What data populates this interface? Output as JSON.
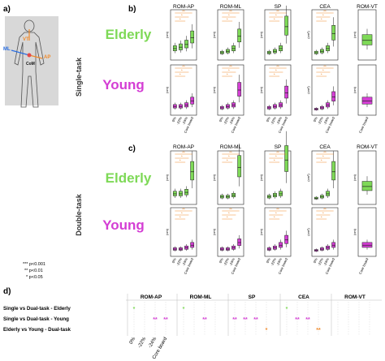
{
  "panel_labels": {
    "a": "a)",
    "b": "b)",
    "c": "c)",
    "d": "d)"
  },
  "body_labels": {
    "vt": "VT",
    "ap": "AP",
    "ml": "ML",
    "com": "CoM"
  },
  "significance_legend": [
    "*** p<0.001",
    "** p<0.01",
    "* p<0.05"
  ],
  "task_labels": {
    "single": "Single-task",
    "double": "Double-task"
  },
  "group_labels": {
    "elderly": "Elderly",
    "young": "Young"
  },
  "colors": {
    "elderly": "#7ed957",
    "young": "#d43ed4",
    "annotation": "#f08a2b",
    "lines": "#e34949"
  },
  "chart_data": {
    "type": "box",
    "conditions": [
      "0%",
      "-22%",
      "-24%",
      "Core board"
    ],
    "measures": [
      {
        "name": "ROM-AP",
        "unit": "(cm)"
      },
      {
        "name": "ROM-ML",
        "unit": "(cm)"
      },
      {
        "name": "SP",
        "unit": "(cm)"
      },
      {
        "name": "CEA",
        "unit": "(cm²)"
      },
      {
        "name": "ROM-VT",
        "unit": "(cm)"
      }
    ],
    "panels": [
      {
        "task": "Single-task",
        "group": "Elderly",
        "measure": "ROM-AP",
        "medians": [
          0.6,
          0.7,
          0.9,
          1.4
        ]
      },
      {
        "task": "Single-task",
        "group": "Elderly",
        "measure": "ROM-ML",
        "medians": [
          0.3,
          0.4,
          0.6,
          1.5
        ]
      },
      {
        "task": "Single-task",
        "group": "Elderly",
        "measure": "SP",
        "medians": [
          0.3,
          0.4,
          0.6,
          2.2
        ]
      },
      {
        "task": "Single-task",
        "group": "Elderly",
        "measure": "CEA",
        "medians": [
          0.3,
          0.4,
          0.6,
          1.7
        ]
      },
      {
        "task": "Single-task",
        "group": "Elderly",
        "measure": "ROM-VT",
        "medians": [
          1.2
        ]
      },
      {
        "task": "Single-task",
        "group": "Young",
        "measure": "ROM-AP",
        "medians": [
          0.4,
          0.4,
          0.5,
          0.8
        ]
      },
      {
        "task": "Single-task",
        "group": "Young",
        "measure": "ROM-ML",
        "medians": [
          0.3,
          0.4,
          0.5,
          1.6
        ]
      },
      {
        "task": "Single-task",
        "group": "Young",
        "measure": "SP",
        "medians": [
          0.3,
          0.4,
          0.5,
          1.4
        ]
      },
      {
        "task": "Single-task",
        "group": "Young",
        "measure": "CEA",
        "medians": [
          0.2,
          0.3,
          0.5,
          1.1
        ]
      },
      {
        "task": "Single-task",
        "group": "Young",
        "measure": "ROM-VT",
        "medians": [
          0.8
        ]
      },
      {
        "task": "Double-task",
        "group": "Elderly",
        "measure": "ROM-AP",
        "medians": [
          0.5,
          0.5,
          0.6,
          2.0
        ]
      },
      {
        "task": "Double-task",
        "group": "Elderly",
        "measure": "ROM-ML",
        "medians": [
          0.3,
          0.3,
          0.4,
          2.3
        ]
      },
      {
        "task": "Double-task",
        "group": "Elderly",
        "measure": "SP",
        "medians": [
          0.3,
          0.4,
          0.5,
          2.8
        ]
      },
      {
        "task": "Double-task",
        "group": "Elderly",
        "measure": "CEA",
        "medians": [
          0.2,
          0.3,
          0.5,
          2.0
        ]
      },
      {
        "task": "Double-task",
        "group": "Elderly",
        "measure": "ROM-VT",
        "medians": [
          1.0
        ]
      },
      {
        "task": "Double-task",
        "group": "Young",
        "measure": "ROM-AP",
        "medians": [
          0.3,
          0.3,
          0.4,
          0.6
        ]
      },
      {
        "task": "Double-task",
        "group": "Young",
        "measure": "ROM-ML",
        "medians": [
          0.3,
          0.3,
          0.4,
          0.8
        ]
      },
      {
        "task": "Double-task",
        "group": "Young",
        "measure": "SP",
        "medians": [
          0.3,
          0.4,
          0.6,
          1.0
        ]
      },
      {
        "task": "Double-task",
        "group": "Young",
        "measure": "CEA",
        "medians": [
          0.2,
          0.3,
          0.4,
          0.6
        ]
      },
      {
        "task": "Double-task",
        "group": "Young",
        "measure": "ROM-VT",
        "medians": [
          0.6
        ]
      }
    ],
    "comparisons": {
      "rows": [
        "Single vs Dual-task - Elderly",
        "Single vs Dual-task - Young",
        "Elderly vs Young - Dual-task"
      ],
      "measures": [
        "ROM-AP",
        "ROM-ML",
        "SP",
        "CEA",
        "ROM-VT"
      ],
      "conditions": [
        "0%",
        "-22%",
        "-24%",
        "Core board"
      ],
      "marks": [
        {
          "measure": "ROM-AP",
          "row": 0,
          "condition": "0%",
          "label": "*"
        },
        {
          "measure": "ROM-AP",
          "row": 1,
          "condition": "-24%",
          "label": "**"
        },
        {
          "measure": "ROM-AP",
          "row": 1,
          "condition": "Core board",
          "label": "**"
        },
        {
          "measure": "ROM-ML",
          "row": 0,
          "condition": "0%",
          "label": "*"
        },
        {
          "measure": "ROM-ML",
          "row": 1,
          "condition": "-24%",
          "label": "**"
        },
        {
          "measure": "SP",
          "row": 1,
          "condition": "0%",
          "label": "**"
        },
        {
          "measure": "SP",
          "row": 1,
          "condition": "-22%",
          "label": "**"
        },
        {
          "measure": "SP",
          "row": 1,
          "condition": "-24%",
          "label": "**"
        },
        {
          "measure": "SP",
          "row": 2,
          "condition": "Core board",
          "label": "*"
        },
        {
          "measure": "CEA",
          "row": 0,
          "condition": "0%",
          "label": "*"
        },
        {
          "measure": "CEA",
          "row": 1,
          "condition": "-22%",
          "label": "**"
        },
        {
          "measure": "CEA",
          "row": 1,
          "condition": "-24%",
          "label": "**"
        },
        {
          "measure": "CEA",
          "row": 2,
          "condition": "Core board",
          "label": "**"
        }
      ]
    }
  }
}
